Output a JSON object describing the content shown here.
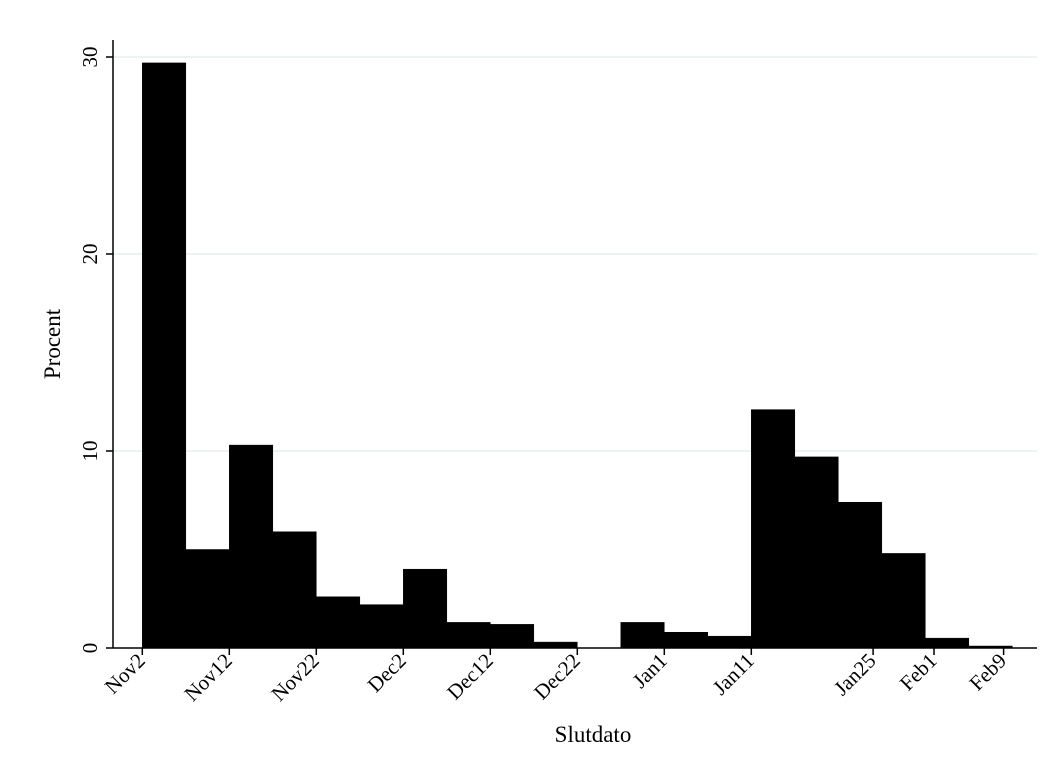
{
  "chart_data": {
    "type": "bar",
    "title": "",
    "xlabel": "Slutdato",
    "ylabel": "Procent",
    "ylim": [
      0,
      31
    ],
    "grid": true,
    "grid_color": "#e6efee",
    "bar_color": "#000000",
    "y_ticks": [
      0,
      10,
      20,
      30
    ],
    "x_ticks": [
      "Nov2",
      "Nov12",
      "Nov22",
      "Dec2",
      "Dec12",
      "Dec22",
      "Jan1",
      "Jan11",
      "Jan25",
      "Feb1",
      "Feb9"
    ],
    "bin_edges": [
      "Nov2",
      "Nov7",
      "Nov12",
      "Nov17",
      "Nov22",
      "Nov27",
      "Dec2",
      "Dec7",
      "Dec12",
      "Dec17",
      "Dec22",
      "Dec27",
      "Jan1",
      "Jan6",
      "Jan11",
      "Jan16",
      "Jan21",
      "Jan26",
      "Jan31",
      "Feb5",
      "Feb10"
    ],
    "values": [
      29.7,
      5.0,
      10.3,
      5.9,
      2.6,
      2.2,
      4.0,
      1.3,
      1.2,
      0.3,
      0.0,
      1.3,
      0.8,
      0.6,
      12.1,
      9.7,
      7.4,
      4.8,
      0.5,
      0.1
    ]
  }
}
